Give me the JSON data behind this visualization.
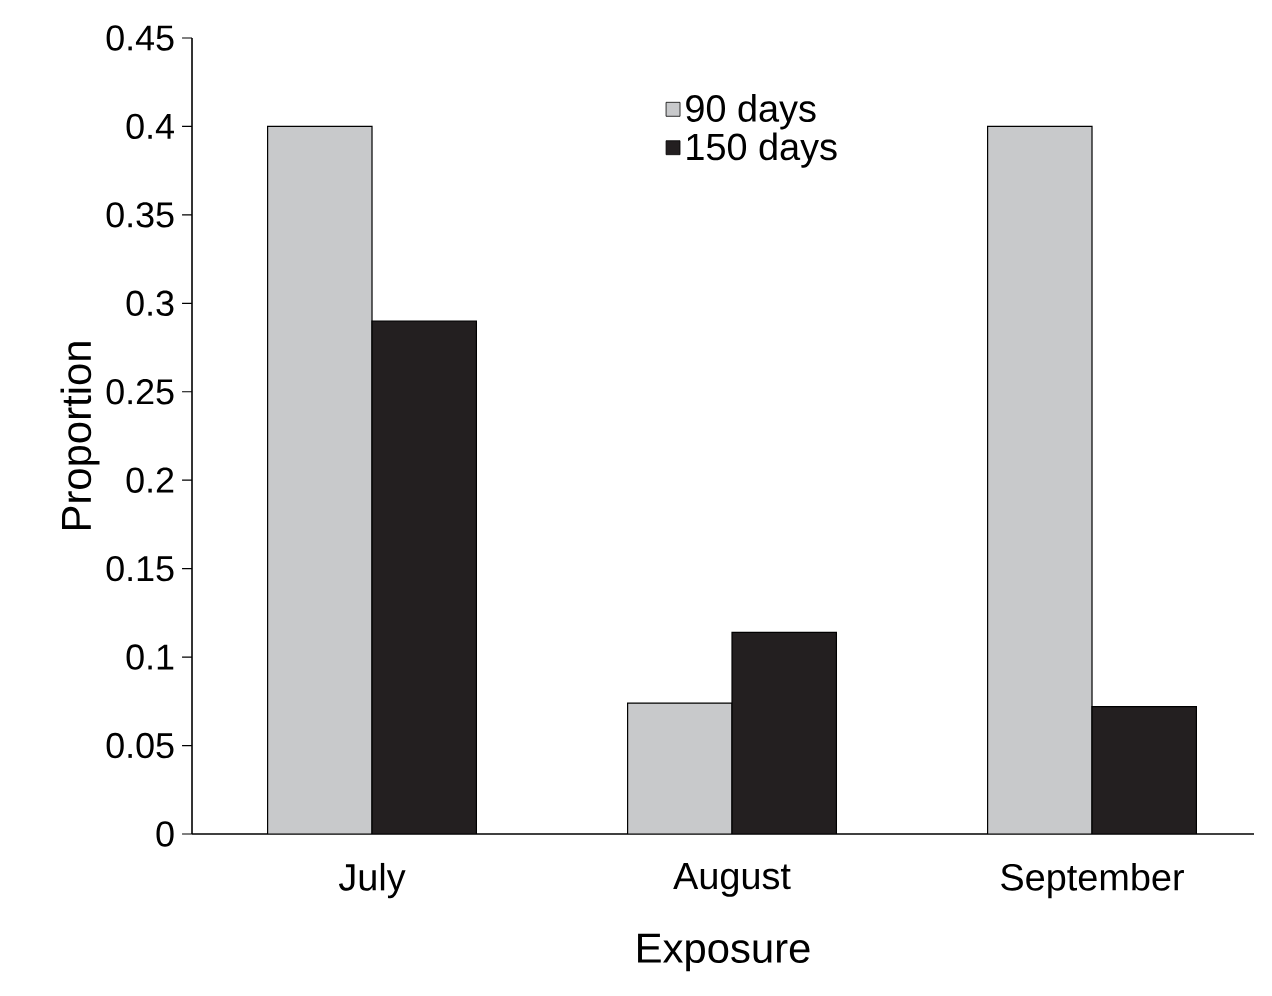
{
  "chart_data": {
    "type": "bar",
    "xlabel": "Exposure",
    "ylabel": "Proportion",
    "categories": [
      "July",
      "August",
      "September"
    ],
    "series": [
      {
        "name": "90 days",
        "color": "#c8c9cb",
        "values": [
          0.4,
          0.074,
          0.4
        ]
      },
      {
        "name": "150 days",
        "color": "#231f20",
        "values": [
          0.29,
          0.114,
          0.072
        ]
      }
    ],
    "ylim": [
      0,
      0.45
    ],
    "yticks": [
      0,
      0.05,
      0.1,
      0.15,
      0.2,
      0.25,
      0.3,
      0.35,
      0.4,
      0.45
    ],
    "legend": "top",
    "grid": false
  }
}
